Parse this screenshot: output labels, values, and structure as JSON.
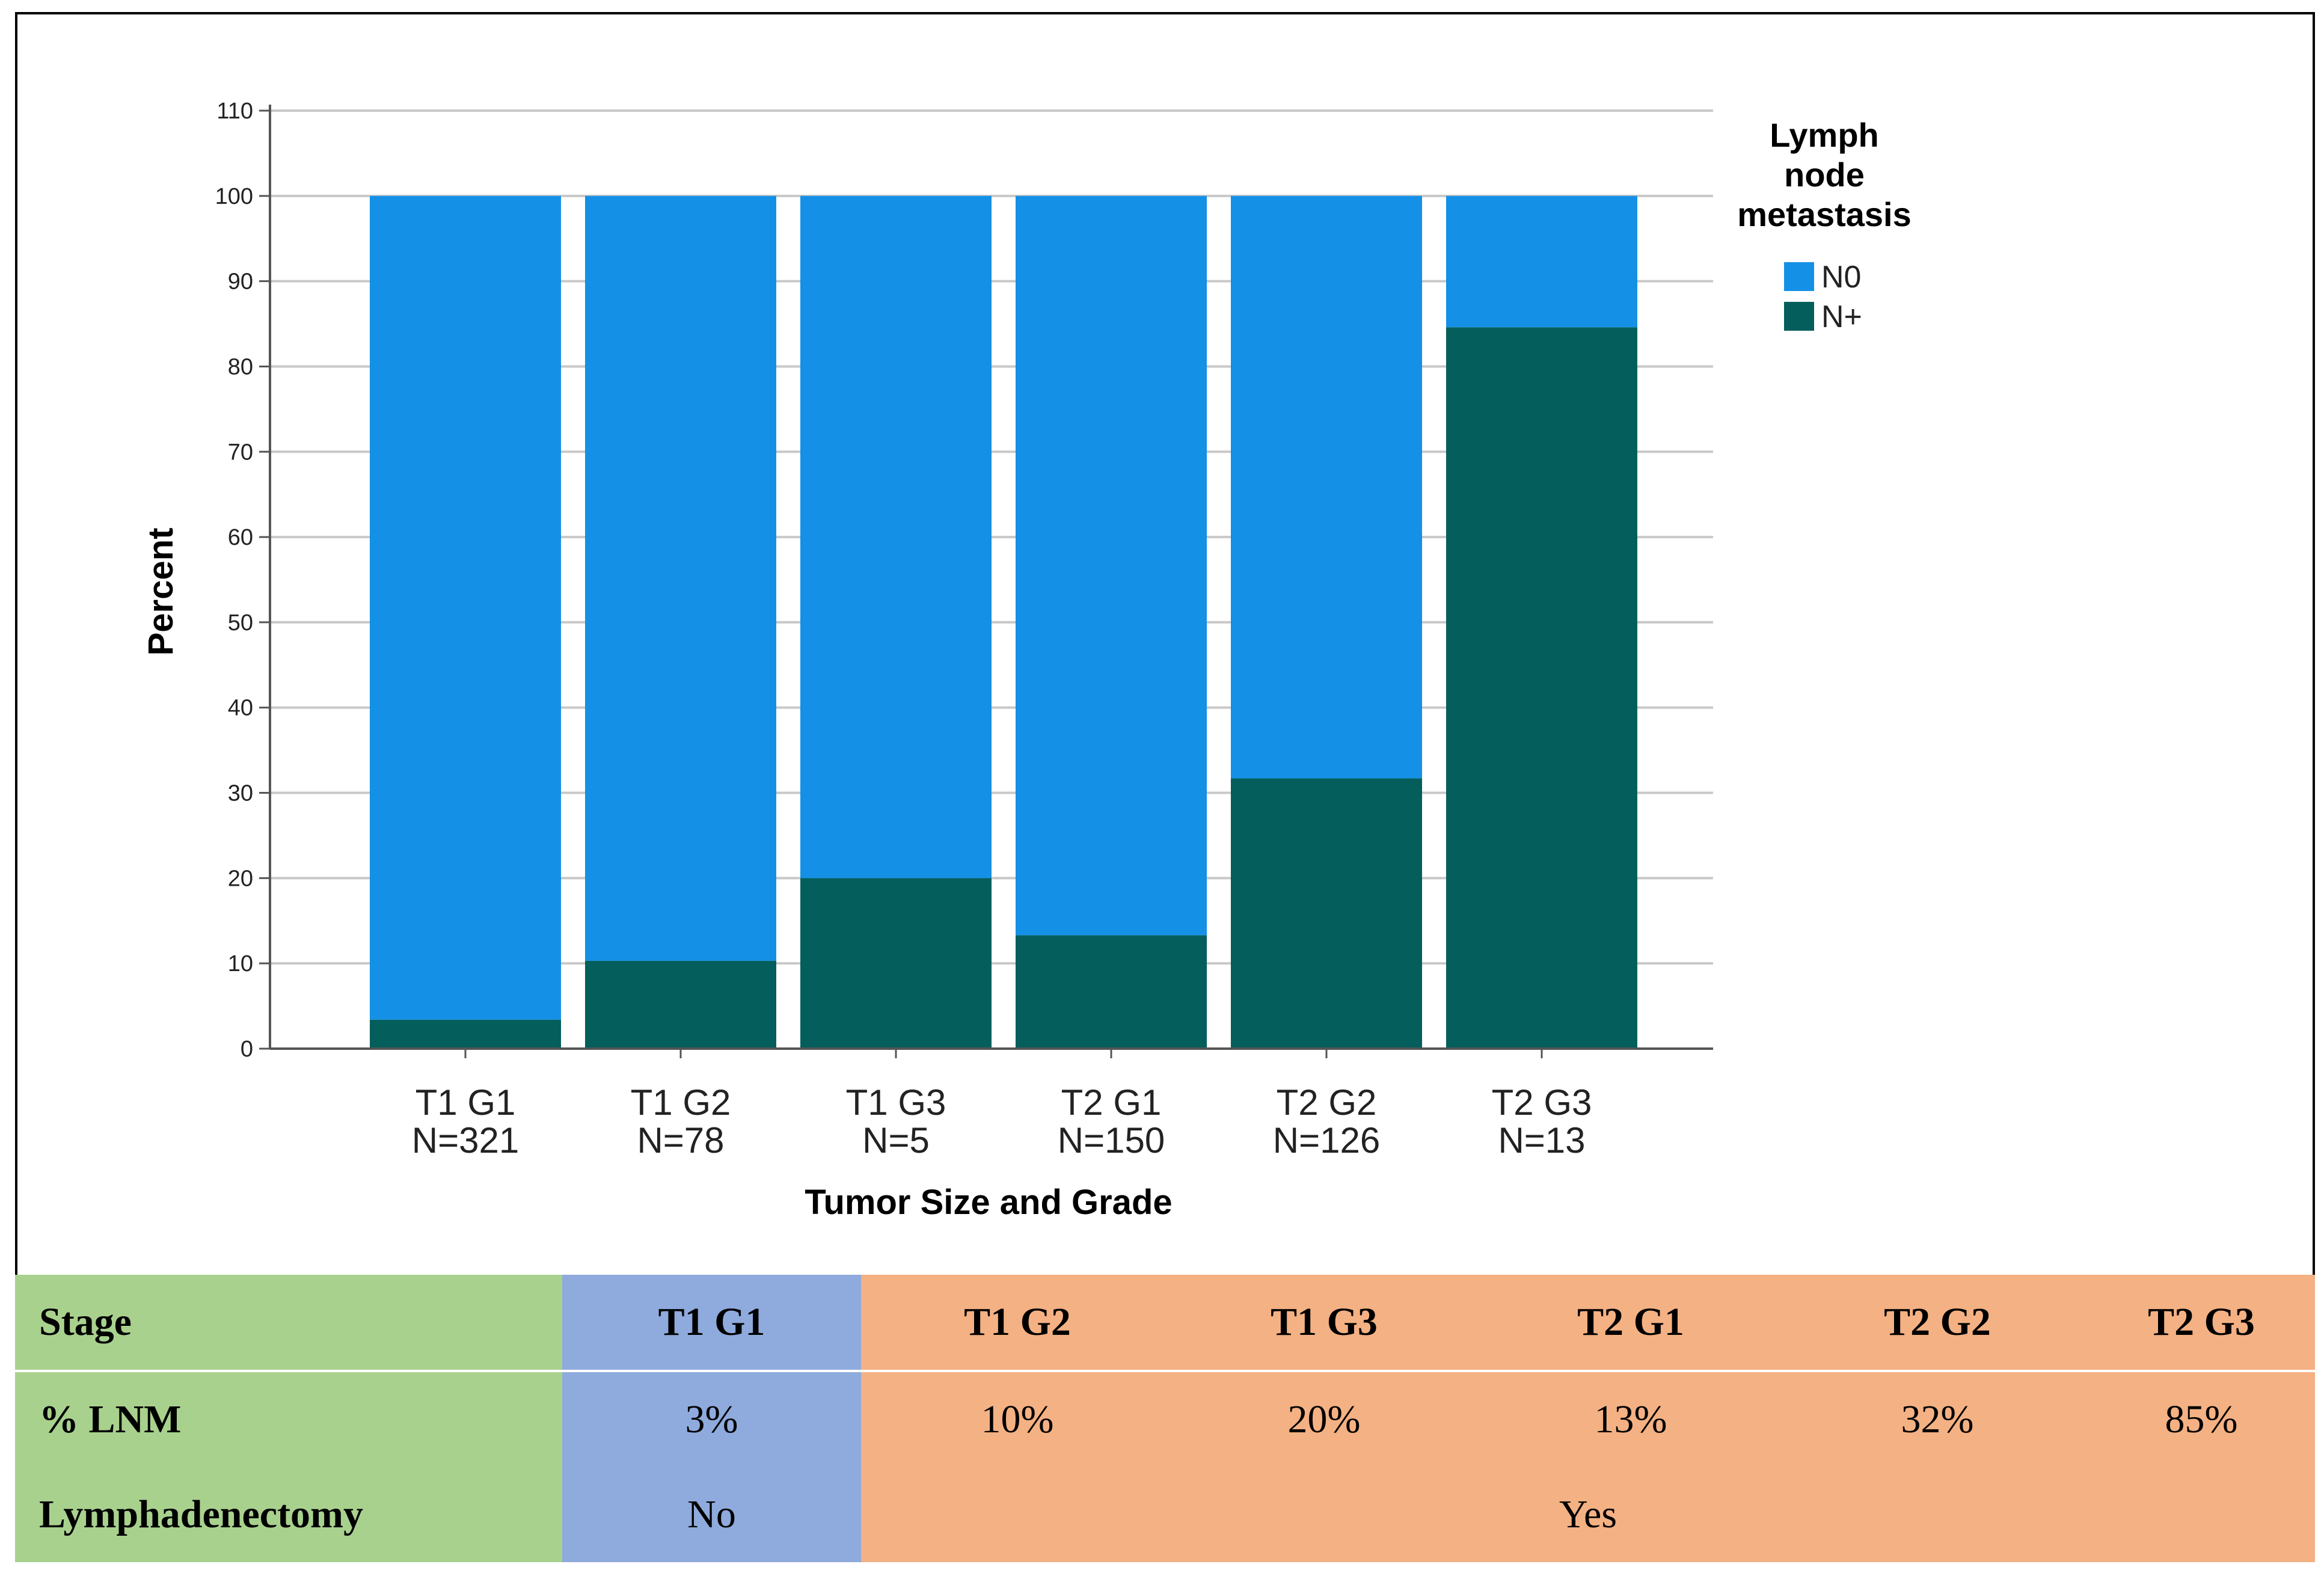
{
  "chart_data": {
    "type": "bar",
    "stacked": true,
    "categories": [
      "T1 G1",
      "T1 G2",
      "T1 G3",
      "T2 G1",
      "T2 G2",
      "T2 G3"
    ],
    "category_n": [
      "N=321",
      "N=78",
      "N=5",
      "N=150",
      "N=126",
      "N=13"
    ],
    "series": [
      {
        "name": "N+",
        "color": "#035e5c",
        "values": [
          3.4,
          10.3,
          20,
          13.3,
          31.7,
          84.6
        ]
      },
      {
        "name": "N0",
        "color": "#1490e6",
        "values": [
          96.6,
          89.7,
          80,
          86.7,
          68.3,
          15.4
        ]
      }
    ],
    "legend_order": [
      "N0",
      "N+"
    ],
    "legend_title": [
      "Lymph",
      "node",
      "metastasis"
    ],
    "xlabel": "Tumor Size and Grade",
    "ylabel": "Percent",
    "ylim": [
      0,
      110
    ],
    "yticks": [
      0,
      10,
      20,
      30,
      40,
      50,
      60,
      70,
      80,
      90,
      100,
      110
    ],
    "grid": true,
    "legend_position": "top-right"
  },
  "table": {
    "rows": [
      {
        "label": "Stage",
        "values": [
          "T1 G1",
          "T1 G2",
          "T1 G3",
          "T2 G1",
          "T2 G2",
          "T2 G3"
        ]
      },
      {
        "label": "% LNM",
        "values": [
          "3%",
          "10%",
          "20%",
          "13%",
          "32%",
          "85%"
        ]
      },
      {
        "label": "Lymphadenectomy",
        "no": "No",
        "yes": "Yes"
      }
    ],
    "colors": {
      "label": "#a9d18e",
      "no_group": "#8faadc",
      "yes_group": "#f4b183"
    }
  }
}
